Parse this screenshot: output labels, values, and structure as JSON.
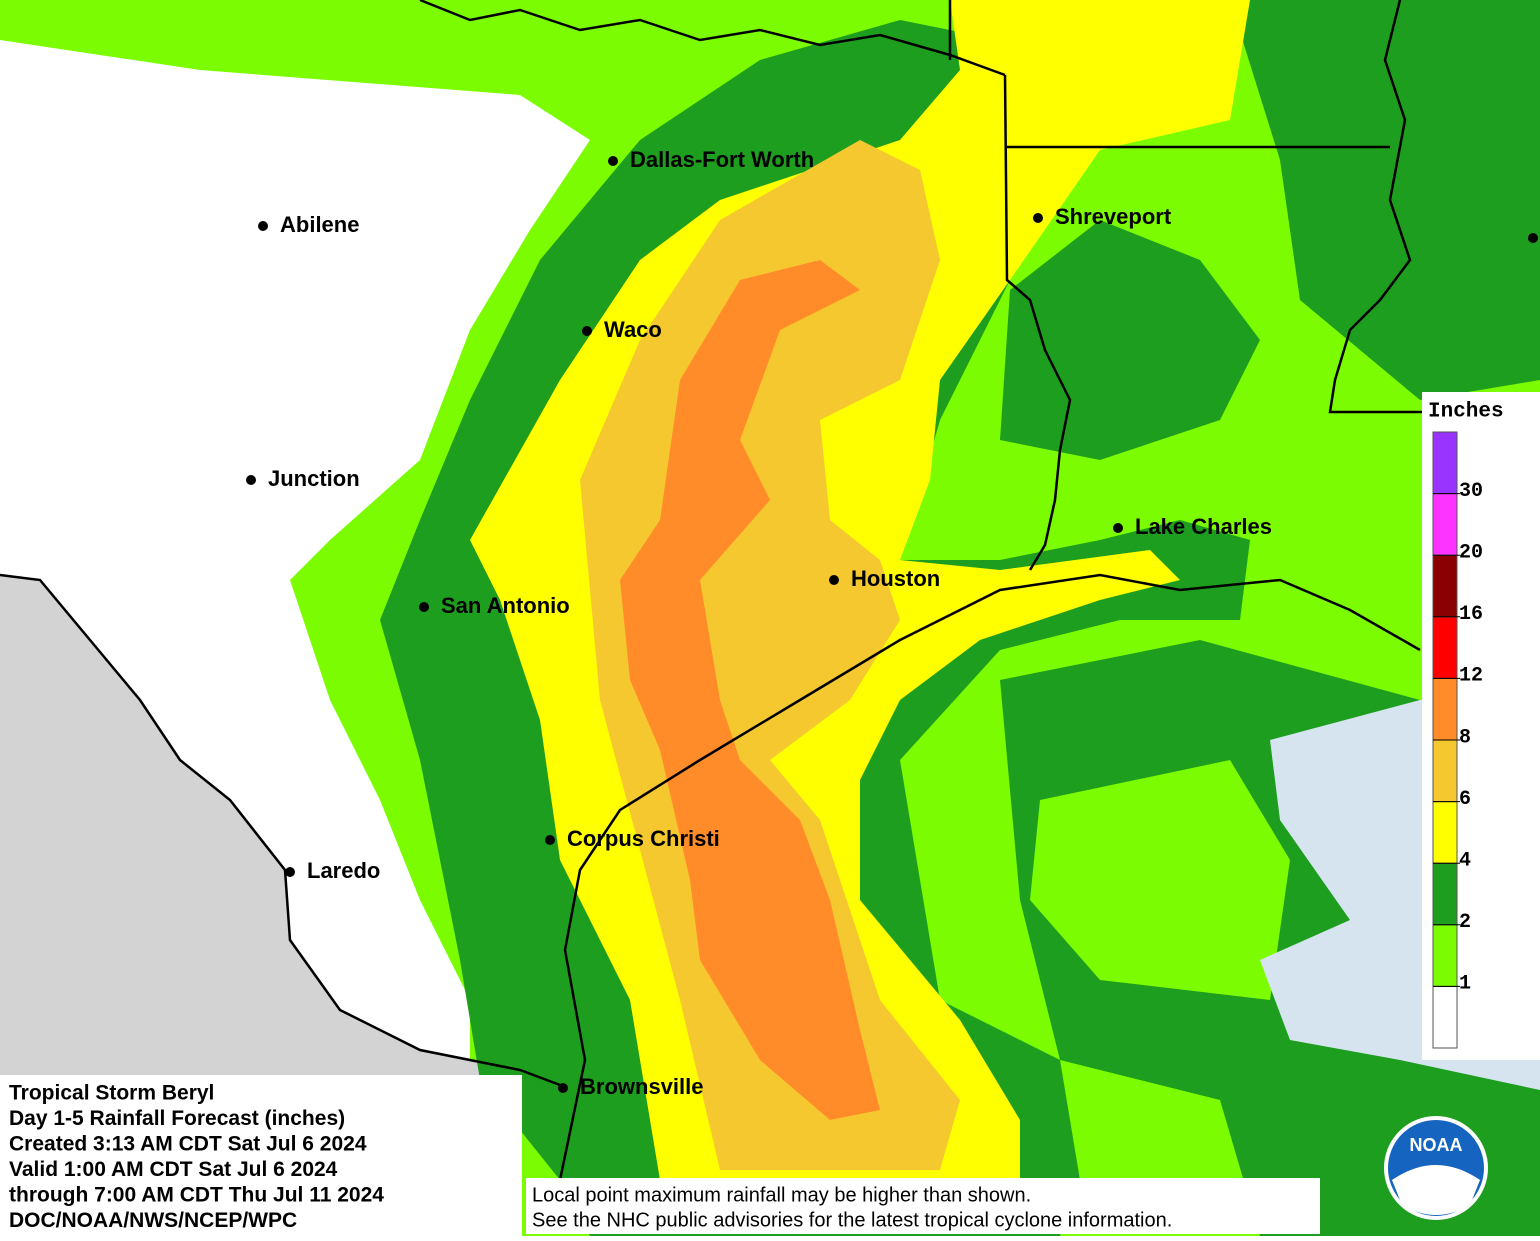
{
  "map": {
    "cities": [
      "Dallas-Fort Worth",
      "Abilene",
      "Shreveport",
      "Waco",
      "Junction",
      "Lake Charles",
      "Houston",
      "San Antonio",
      "Corpus Christi",
      "Laredo",
      "Brownsville"
    ],
    "info": [
      "Tropical Storm Beryl",
      "Day 1-5 Rainfall Forecast (inches)",
      "Created 3:13 AM CDT Sat Jul 6 2024",
      "Valid 1:00 AM CDT Sat Jul 6 2024",
      "through 7:00 AM CDT Thu Jul 11 2024",
      "DOC/NOAA/NWS/NCEP/WPC"
    ],
    "note": [
      "Local point maximum rainfall may be higher than shown.",
      "See the NHC public advisories for the latest tropical cyclone information."
    ],
    "logo": "NOAA",
    "legend": {
      "title": "Inches",
      "ticks": [
        1,
        2,
        4,
        6,
        8,
        12,
        16,
        20,
        30
      ],
      "colors": [
        "#ffffff",
        "#7cfc00",
        "#1e9e1e",
        "#ffff00",
        "#f5c830",
        "#ff8c28",
        "#ff0000",
        "#8b0000",
        "#ff33ff",
        "#9933ff"
      ]
    }
  }
}
